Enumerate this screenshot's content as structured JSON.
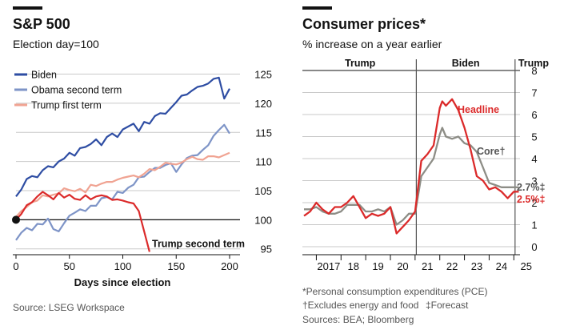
{
  "chart_data": [
    {
      "type": "line",
      "title": "S&P 500",
      "subtitle": "Election day=100",
      "xlabel": "Days since election",
      "ylabel": "",
      "xlim": [
        0,
        200
      ],
      "ylim": [
        94,
        127
      ],
      "x_ticks": [
        0,
        50,
        100,
        150,
        200
      ],
      "y_ticks": [
        95,
        100,
        105,
        110,
        115,
        120,
        125
      ],
      "y_axis_side": "right",
      "grid": true,
      "legend_position": "top-left",
      "baseline": 100,
      "source": "Source: LSEG Workspace",
      "series": [
        {
          "name": "Biden",
          "color": "#2e4da3",
          "x": [
            0,
            5,
            10,
            15,
            20,
            25,
            30,
            35,
            40,
            45,
            50,
            55,
            60,
            65,
            70,
            75,
            80,
            85,
            90,
            95,
            100,
            105,
            110,
            115,
            120,
            125,
            130,
            135,
            140,
            145,
            150,
            155,
            160,
            165,
            170,
            175,
            180,
            185,
            190,
            195,
            200
          ],
          "y": [
            104,
            105.2,
            107,
            107.5,
            107.3,
            108.5,
            109.2,
            109,
            110,
            110.5,
            111.5,
            111,
            112.3,
            112.5,
            113,
            113.8,
            112.8,
            114.2,
            114.8,
            114.2,
            115.5,
            116,
            116.5,
            115.2,
            116.8,
            116.5,
            117.8,
            118.3,
            118.2,
            119.2,
            120.2,
            121.3,
            121.5,
            122.2,
            122.8,
            123,
            123.4,
            124.2,
            124.4,
            120.8,
            122.5
          ]
        },
        {
          "name": "Obama second term",
          "color": "#7e94c7",
          "x": [
            0,
            5,
            10,
            15,
            20,
            25,
            30,
            35,
            40,
            45,
            50,
            55,
            60,
            65,
            70,
            75,
            80,
            85,
            90,
            95,
            100,
            105,
            110,
            115,
            120,
            125,
            130,
            135,
            140,
            145,
            150,
            155,
            160,
            165,
            170,
            175,
            180,
            185,
            190,
            195,
            200
          ],
          "y": [
            96.5,
            97.8,
            98.6,
            98.2,
            99.3,
            99.2,
            100.2,
            98.4,
            98,
            99.4,
            100.7,
            101.2,
            101.8,
            101.5,
            102.4,
            102.4,
            103.7,
            103.9,
            103.5,
            104.8,
            104.6,
            105.5,
            106,
            107.3,
            107.4,
            108.2,
            108.9,
            108.9,
            109.4,
            109.7,
            108.2,
            109.5,
            110.6,
            111,
            111.1,
            112,
            112.8,
            114.4,
            115.4,
            116.3,
            114.8
          ]
        },
        {
          "name": "Trump first term",
          "color": "#f0a392",
          "x": [
            0,
            5,
            10,
            15,
            20,
            25,
            30,
            35,
            40,
            45,
            50,
            55,
            60,
            65,
            70,
            75,
            80,
            85,
            90,
            95,
            100,
            105,
            110,
            115,
            120,
            125,
            130,
            135,
            140,
            145,
            150,
            155,
            160,
            165,
            170,
            175,
            180,
            185,
            190,
            195,
            200
          ],
          "y": [
            100.5,
            101.5,
            102.2,
            103,
            103.3,
            104.2,
            104,
            104.3,
            104.5,
            105.4,
            105.1,
            104.9,
            105.3,
            104.7,
            106,
            105.8,
            106.2,
            106.5,
            106.5,
            106.9,
            107.2,
            107.4,
            107.6,
            107.3,
            107.9,
            108.7,
            108.5,
            109.1,
            109.8,
            109.6,
            109.5,
            109.8,
            110.4,
            110.8,
            110.4,
            110.3,
            110.9,
            110.9,
            110.7,
            111.1,
            111.5
          ]
        },
        {
          "name": "Trump second term",
          "color": "#db2a2a",
          "x": [
            0,
            5,
            10,
            15,
            20,
            25,
            30,
            35,
            40,
            45,
            50,
            55,
            60,
            65,
            70,
            75,
            80,
            85,
            90,
            95,
            100,
            105,
            110,
            115,
            120,
            125
          ],
          "y": [
            100,
            101,
            102.5,
            103,
            104,
            104.8,
            104.2,
            103.5,
            104.6,
            103.8,
            104.3,
            103.6,
            103.4,
            104.2,
            103.5,
            104,
            104.2,
            104,
            103.4,
            103.5,
            103.3,
            103,
            102.8,
            101.5,
            98,
            94.5
          ]
        }
      ]
    },
    {
      "type": "line",
      "title": "Consumer prices*",
      "subtitle": "% increase on a year earlier",
      "xlabel": "",
      "ylabel": "",
      "xlim": [
        2016.5,
        2025.25
      ],
      "ylim": [
        0,
        8
      ],
      "x_ticks": [
        2017,
        2018,
        2019,
        2020,
        2021,
        2022,
        2023,
        2024,
        2025
      ],
      "x_tick_labels": [
        "2017",
        "18",
        "19",
        "20",
        "21",
        "22",
        "23",
        "24",
        "25"
      ],
      "y_ticks": [
        0,
        1,
        2,
        3,
        4,
        5,
        6,
        7,
        8
      ],
      "y_axis_side": "right",
      "grid": true,
      "periods": [
        {
          "label": "Trump",
          "start": 2016.5,
          "end": 2021.05
        },
        {
          "label": "Biden",
          "start": 2021.05,
          "end": 2025.05
        },
        {
          "label": "Trump",
          "start": 2025.05,
          "end": 2025.25
        }
      ],
      "notes": [
        "*Personal consumption expenditures (PCE)",
        "†Excludes energy and food",
        "‡Forecast",
        "Sources: BEA; Bloomberg"
      ],
      "series": [
        {
          "name": "Headline",
          "color": "#db2a2a",
          "x": [
            2016.5,
            2016.75,
            2017,
            2017.25,
            2017.5,
            2017.75,
            2018,
            2018.25,
            2018.5,
            2018.75,
            2019,
            2019.25,
            2019.5,
            2019.75,
            2020,
            2020.25,
            2020.5,
            2020.75,
            2021,
            2021.25,
            2021.5,
            2021.75,
            2022,
            2022.1,
            2022.25,
            2022.5,
            2022.75,
            2023,
            2023.25,
            2023.5,
            2023.75,
            2024,
            2024.25,
            2024.5,
            2024.75,
            2025,
            2025.2
          ],
          "y": [
            1.4,
            1.6,
            2.0,
            1.7,
            1.5,
            1.8,
            1.8,
            2.0,
            2.3,
            1.8,
            1.3,
            1.5,
            1.4,
            1.5,
            1.8,
            0.6,
            0.9,
            1.2,
            1.6,
            3.9,
            4.2,
            4.6,
            6.3,
            6.6,
            6.4,
            6.7,
            6.2,
            5.4,
            4.4,
            3.2,
            3.0,
            2.6,
            2.7,
            2.5,
            2.2,
            2.5,
            2.5
          ]
        },
        {
          "name": "Core†",
          "color": "#8d8d86",
          "x": [
            2016.5,
            2016.75,
            2017,
            2017.25,
            2017.5,
            2017.75,
            2018,
            2018.25,
            2018.5,
            2018.75,
            2019,
            2019.25,
            2019.5,
            2019.75,
            2020,
            2020.25,
            2020.5,
            2020.75,
            2021,
            2021.25,
            2021.5,
            2021.75,
            2022,
            2022.1,
            2022.25,
            2022.5,
            2022.75,
            2023,
            2023.25,
            2023.5,
            2023.75,
            2024,
            2024.25,
            2024.5,
            2024.75,
            2025,
            2025.2
          ],
          "y": [
            1.7,
            1.7,
            1.8,
            1.6,
            1.5,
            1.5,
            1.6,
            1.9,
            1.9,
            1.9,
            1.6,
            1.6,
            1.7,
            1.6,
            1.8,
            1.0,
            1.2,
            1.5,
            1.5,
            3.2,
            3.6,
            4.0,
            5.1,
            5.4,
            5.0,
            4.9,
            5.0,
            4.7,
            4.6,
            4.3,
            3.6,
            2.9,
            2.8,
            2.7,
            2.7,
            2.7,
            2.7
          ]
        }
      ],
      "annotations": [
        {
          "text": "Headline",
          "color": "#db2a2a"
        },
        {
          "text": "Core†",
          "color": "#555555"
        },
        {
          "text": "2.7%‡",
          "color": "#555555"
        },
        {
          "text": "2.5%‡",
          "color": "#db2a2a"
        }
      ]
    }
  ]
}
